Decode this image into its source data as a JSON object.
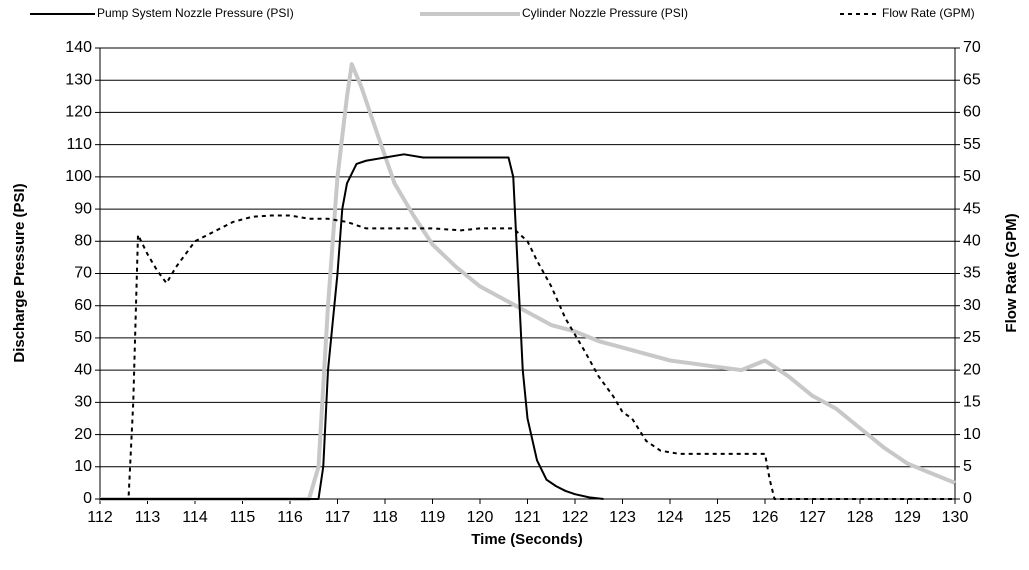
{
  "chart_data": {
    "type": "line",
    "xlabel": "Time (Seconds)",
    "ylabel": "Discharge Pressure (PSI)",
    "y2label": "Flow Rate (GPM)",
    "xlim": [
      112,
      130
    ],
    "xticks": [
      112,
      113,
      114,
      115,
      116,
      117,
      118,
      119,
      120,
      121,
      122,
      123,
      124,
      125,
      126,
      127,
      128,
      129,
      130
    ],
    "ylim": [
      0,
      140
    ],
    "yticks": [
      0,
      10,
      20,
      30,
      40,
      50,
      60,
      70,
      80,
      90,
      100,
      110,
      120,
      130,
      140
    ],
    "y2lim": [
      0,
      70
    ],
    "y2ticks": [
      0,
      5,
      10,
      15,
      20,
      25,
      30,
      35,
      40,
      45,
      50,
      55,
      60,
      65,
      70
    ],
    "grid": true,
    "legend": "top",
    "series": [
      {
        "name": "Pump System Nozzle Pressure (PSI)",
        "color": "#000000",
        "line_style": "solid",
        "width": 2,
        "x": [
          112,
          116.6,
          116.7,
          116.8,
          116.9,
          117.0,
          117.1,
          117.2,
          117.4,
          117.6,
          118.0,
          118.4,
          118.8,
          119.2,
          119.6,
          120.0,
          120.4,
          120.6,
          120.7,
          120.8,
          120.9,
          121.0,
          121.2,
          121.4,
          121.6,
          121.8,
          122.0,
          122.3,
          122.6
        ],
        "values": [
          0,
          0,
          10,
          40,
          55,
          70,
          90,
          98,
          104,
          105,
          106,
          107,
          106,
          106,
          106,
          106,
          106,
          106,
          100,
          70,
          40,
          25,
          12,
          6,
          4,
          2.5,
          1.5,
          0.5,
          0
        ]
      },
      {
        "name": "Cylinder Nozzle Pressure (PSI)",
        "color": "#c8c8c8",
        "line_style": "solid",
        "width": 4,
        "x": [
          112,
          116.4,
          116.6,
          116.8,
          117.0,
          117.2,
          117.3,
          117.5,
          117.8,
          118.2,
          118.6,
          119.0,
          119.5,
          120,
          120.5,
          121,
          121.5,
          122,
          122.5,
          123,
          123.5,
          124,
          124.5,
          125,
          125.5,
          126,
          126.5,
          127,
          127.5,
          128,
          128.5,
          129,
          129.5,
          130
        ],
        "values": [
          0,
          0,
          10,
          60,
          100,
          125,
          135,
          128,
          115,
          98,
          88,
          79,
          72,
          66,
          62,
          58,
          54,
          52,
          49,
          47,
          45,
          43,
          42,
          41,
          40,
          43,
          38,
          32,
          28,
          22,
          16,
          11,
          8,
          5
        ]
      },
      {
        "name": "Flow Rate (GPM)",
        "color": "#000000",
        "line_style": "dashed",
        "width": 2,
        "axis": "y2",
        "x": [
          112,
          112.6,
          112.7,
          112.8,
          113.0,
          113.2,
          113.4,
          113.6,
          113.8,
          114.0,
          114.4,
          114.8,
          115.2,
          115.6,
          116.0,
          116.4,
          116.8,
          117.2,
          117.6,
          118,
          119,
          119.6,
          120,
          120.4,
          120.7,
          121,
          121.2,
          121.5,
          121.8,
          122.2,
          122.5,
          122.8,
          123,
          123.2,
          123.5,
          123.8,
          124.2,
          125,
          126,
          126.1,
          126.2,
          127,
          130
        ],
        "values": [
          0,
          0,
          15,
          41,
          38,
          35.5,
          33.5,
          36,
          38,
          40,
          41.5,
          43,
          43.8,
          44,
          44,
          43.5,
          43.5,
          43,
          42,
          42,
          42,
          41.7,
          42,
          42,
          42,
          40,
          37,
          33,
          28,
          23,
          19,
          16,
          13.5,
          12.5,
          9,
          7.5,
          7,
          7,
          7,
          3,
          0,
          0,
          0
        ]
      }
    ]
  }
}
